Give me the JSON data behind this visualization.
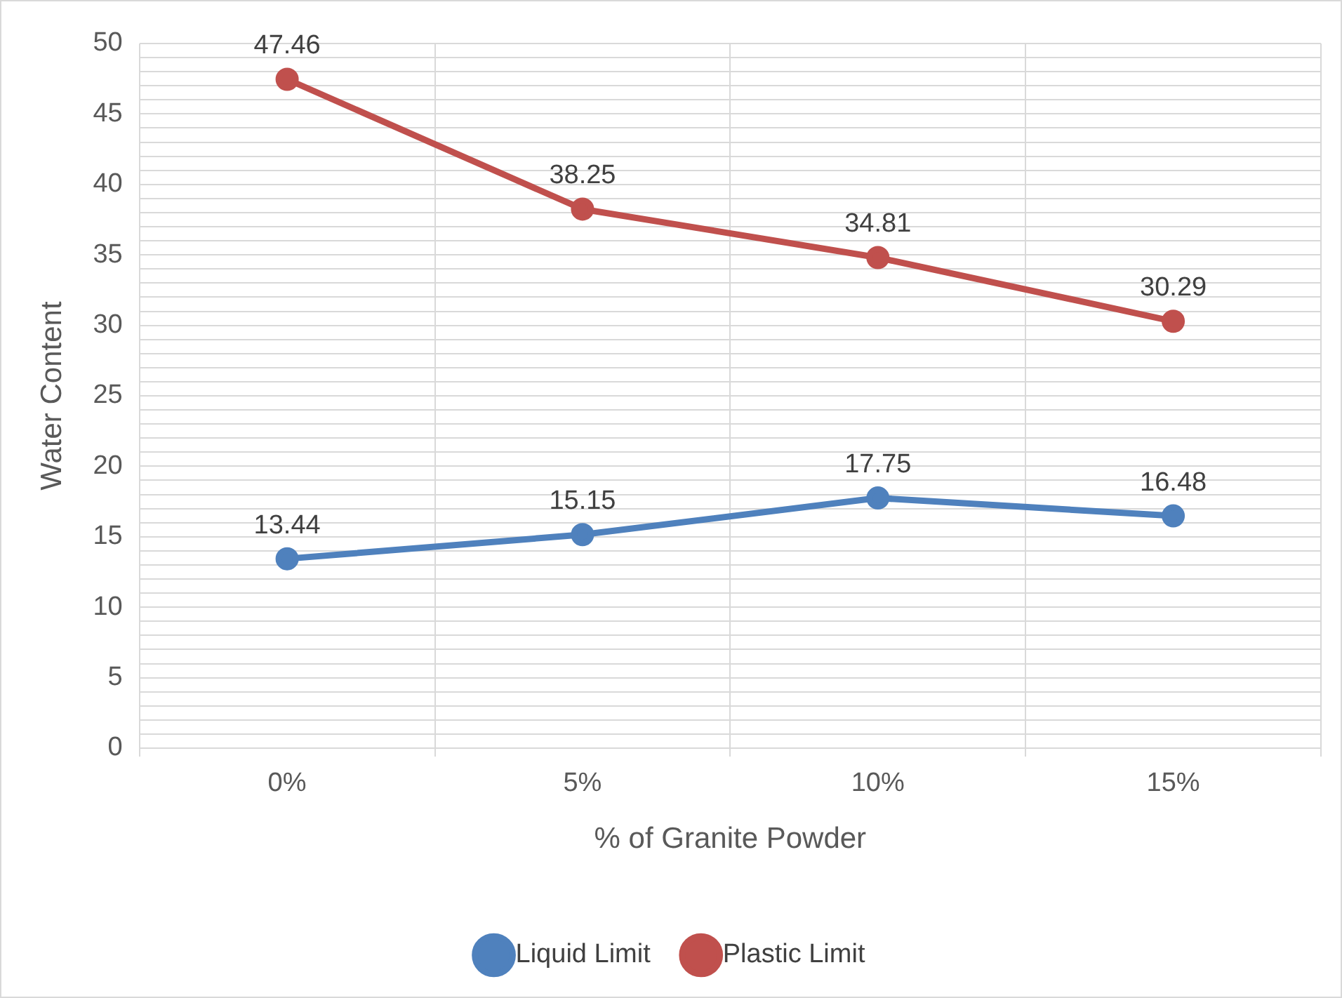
{
  "chart_data": {
    "type": "line",
    "xlabel": "% of Granite Powder",
    "ylabel": "Water Content",
    "categories": [
      "0%",
      "5%",
      "10%",
      "15%"
    ],
    "series": [
      {
        "name": "Liquid Limit",
        "color": "#4f81bd",
        "values": [
          13.44,
          15.15,
          17.75,
          16.48
        ]
      },
      {
        "name": "Plastic Limit",
        "color": "#c0504d",
        "values": [
          47.46,
          38.25,
          34.81,
          30.29
        ]
      }
    ],
    "ylim": [
      0,
      50
    ],
    "yticks": [
      0,
      {
        "value": 1,
        "label": null
      },
      {
        "value": 2,
        "label": null
      },
      {
        "value": 3,
        "label": null
      },
      {
        "value": 4,
        "label": null
      },
      5,
      {
        "value": 6,
        "label": null
      },
      {
        "value": 7,
        "label": null
      },
      {
        "value": 8,
        "label": null
      },
      {
        "value": 9,
        "label": null
      },
      10,
      {
        "value": 11,
        "label": null
      },
      {
        "value": 12,
        "label": null
      },
      {
        "value": 13,
        "label": null
      },
      {
        "value": 14,
        "label": null
      },
      15,
      {
        "value": 16,
        "label": null
      },
      {
        "value": 17,
        "label": null
      },
      {
        "value": 18,
        "label": null
      },
      {
        "value": 19,
        "label": null
      },
      20,
      {
        "value": 21,
        "label": null
      },
      {
        "value": 22,
        "label": null
      },
      {
        "value": 23,
        "label": null
      },
      {
        "value": 24,
        "label": null
      },
      25,
      {
        "value": 26,
        "label": null
      },
      {
        "value": 27,
        "label": null
      },
      {
        "value": 28,
        "label": null
      },
      {
        "value": 29,
        "label": null
      },
      30,
      {
        "value": 31,
        "label": null
      },
      {
        "value": 32,
        "label": null
      },
      {
        "value": 33,
        "label": null
      },
      {
        "value": 34,
        "label": null
      },
      35,
      {
        "value": 36,
        "label": null
      },
      {
        "value": 37,
        "label": null
      },
      {
        "value": 38,
        "label": null
      },
      {
        "value": 39,
        "label": null
      },
      40,
      {
        "value": 41,
        "label": null
      },
      {
        "value": 42,
        "label": null
      },
      {
        "value": 43,
        "label": null
      },
      {
        "value": 44,
        "label": null
      },
      45,
      {
        "value": 46,
        "label": null
      },
      {
        "value": 47,
        "label": null
      },
      {
        "value": 48,
        "label": null
      },
      {
        "value": 49,
        "label": null
      },
      50
    ],
    "grid": true,
    "legend": "bottom",
    "marker": "circle",
    "line_style": "solid",
    "data_labels": true
  }
}
